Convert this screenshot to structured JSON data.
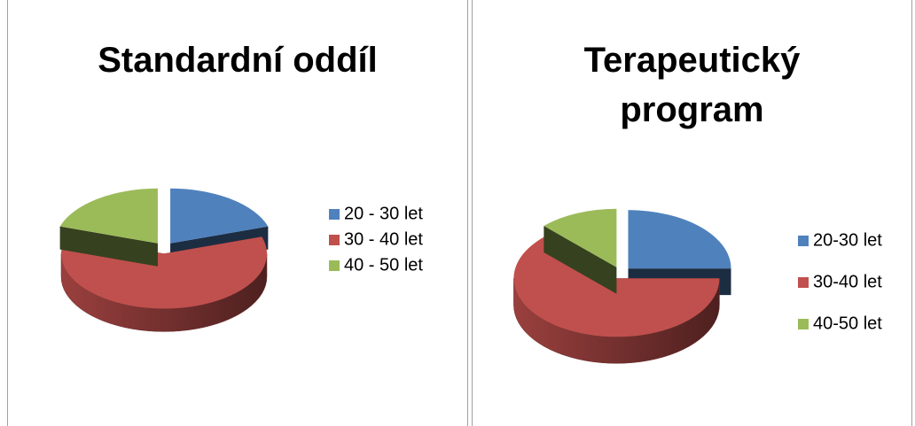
{
  "chart_data": [
    {
      "type": "pie",
      "title": "Standardní oddíl",
      "categories": [
        "20 - 30 let",
        "30 - 40 let",
        "40 - 50 let"
      ],
      "values": [
        20,
        60,
        20
      ],
      "colors": [
        "#4f81bd",
        "#c0504d",
        "#9bbb59"
      ]
    },
    {
      "type": "pie",
      "title": "Terapeutický program",
      "categories": [
        "20-30 let",
        "30-40 let",
        "40-50 let"
      ],
      "values": [
        25,
        62.5,
        12.5
      ],
      "colors": [
        "#4f81bd",
        "#c0504d",
        "#9bbb59"
      ]
    }
  ]
}
